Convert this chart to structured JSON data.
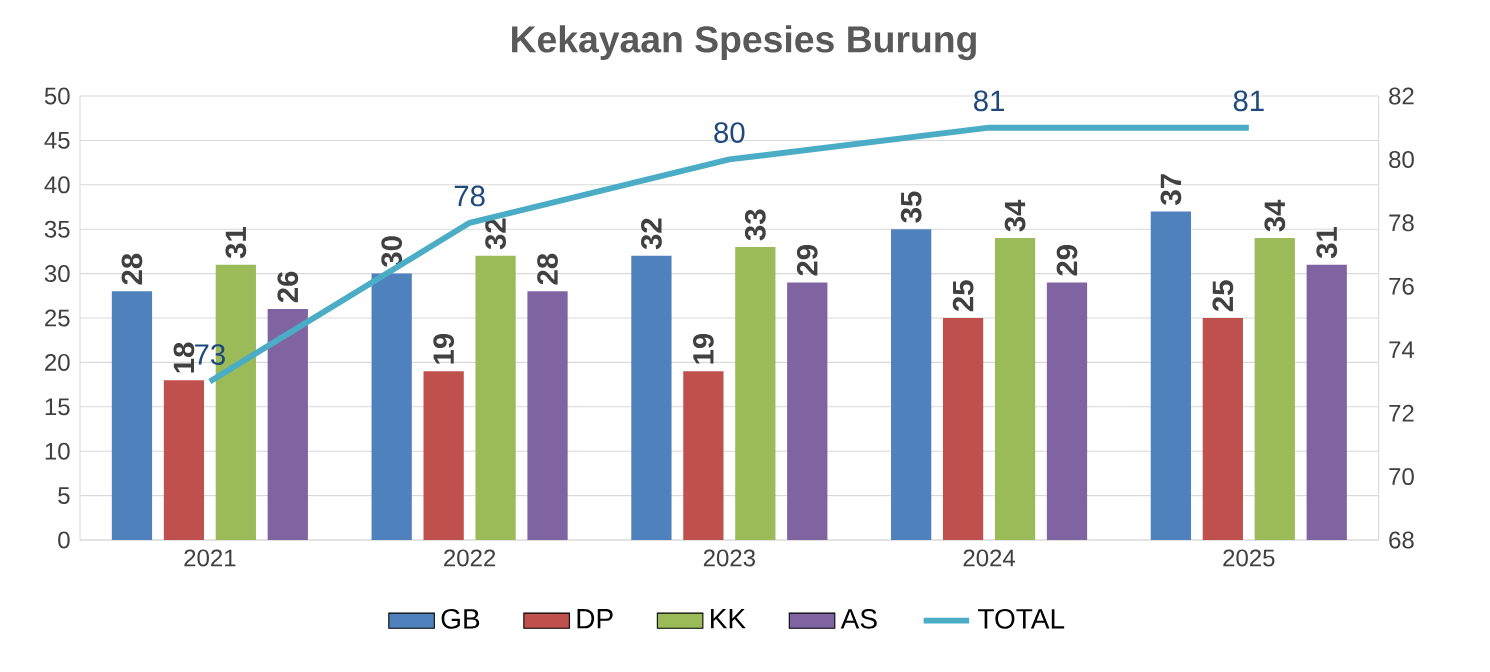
{
  "chart_data": {
    "type": "bar",
    "title": "Kekayaan Spesies Burung",
    "categories": [
      "2021",
      "2022",
      "2023",
      "2024",
      "2025"
    ],
    "series": [
      {
        "name": "GB",
        "color": "#4f81bd",
        "values": [
          28,
          30,
          32,
          35,
          37
        ]
      },
      {
        "name": "DP",
        "color": "#c0504d",
        "values": [
          18,
          19,
          19,
          25,
          25
        ]
      },
      {
        "name": "KK",
        "color": "#9bbb59",
        "values": [
          31,
          32,
          33,
          34,
          34
        ]
      },
      {
        "name": "AS",
        "color": "#8064a2",
        "values": [
          26,
          28,
          29,
          29,
          31
        ]
      },
      {
        "name": "TOTAL",
        "type": "line",
        "axis": "y2",
        "color": "#4bacc6",
        "values": [
          73,
          78,
          80,
          81,
          81
        ]
      }
    ],
    "ylim": [
      0,
      50
    ],
    "yticks": [
      0,
      5,
      10,
      15,
      20,
      25,
      30,
      35,
      40,
      45,
      50
    ],
    "y2lim": [
      68,
      82
    ],
    "y2ticks": [
      68,
      70,
      72,
      74,
      76,
      78,
      80,
      82
    ],
    "grid": "y",
    "legend": "bottom",
    "data_labels": true
  }
}
